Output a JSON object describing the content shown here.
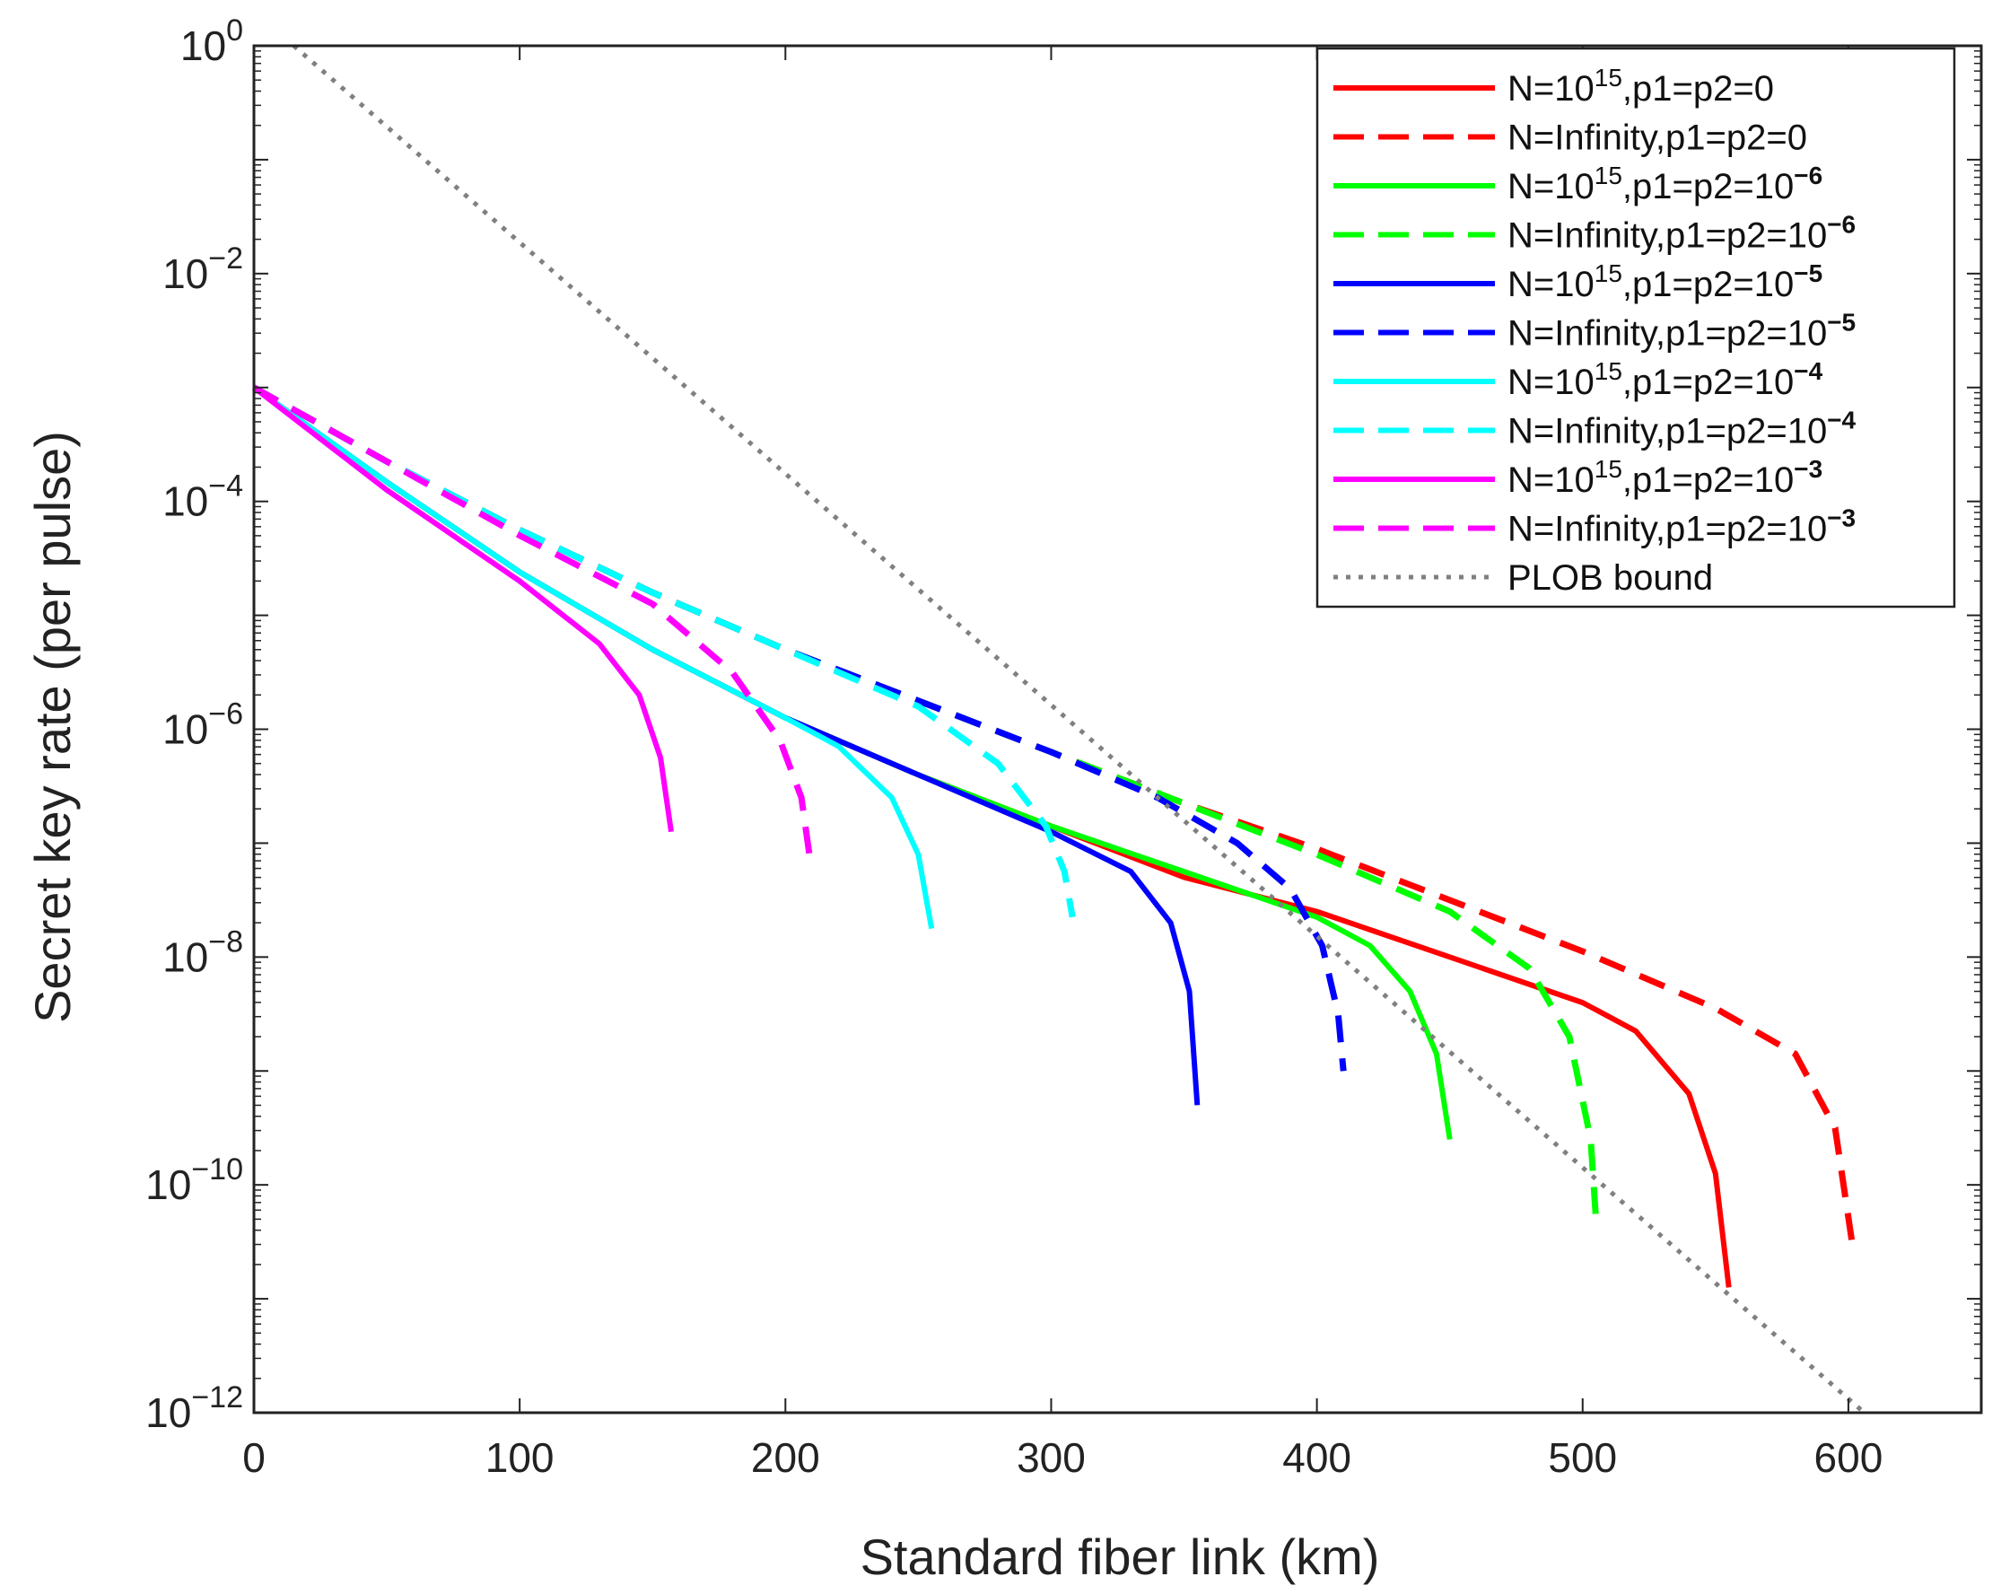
{
  "chart_data": {
    "type": "line",
    "title": "",
    "xlabel": "Standard fiber link (km)",
    "ylabel": "Secret key rate (per pulse)",
    "xlim": [
      0,
      650
    ],
    "ylim_log10": [
      -12,
      0
    ],
    "x_ticks": [
      0,
      100,
      200,
      300,
      400,
      500,
      600
    ],
    "x_tick_labels": [
      "0",
      "100",
      "200",
      "300",
      "400",
      "500",
      "600"
    ],
    "y_ticks_log10": [
      -12,
      -10,
      -8,
      -6,
      -4,
      -2,
      0
    ],
    "y_tick_labels": [
      {
        "base": "10",
        "exp": "−12"
      },
      {
        "base": "10",
        "exp": "−10"
      },
      {
        "base": "10",
        "exp": "−8"
      },
      {
        "base": "10",
        "exp": "−6"
      },
      {
        "base": "10",
        "exp": "−4"
      },
      {
        "base": "10",
        "exp": "−2"
      },
      {
        "base": "10",
        "exp": "0"
      }
    ],
    "grid": false,
    "legend_position": "top-right",
    "series": [
      {
        "name": "N=10^15,p1=p2=0",
        "label": {
          "pre": "N=10",
          "sup": "15",
          "post": ",p1=p2=0",
          "sup2": ""
        },
        "color": "#ff0000",
        "style": "solid",
        "points": [
          [
            0,
            -3.0
          ],
          [
            50,
            -3.83
          ],
          [
            100,
            -4.62
          ],
          [
            150,
            -5.3
          ],
          [
            200,
            -5.9
          ],
          [
            250,
            -6.4
          ],
          [
            300,
            -6.85
          ],
          [
            350,
            -7.3
          ],
          [
            400,
            -7.6
          ],
          [
            450,
            -8.0
          ],
          [
            500,
            -8.4
          ],
          [
            520,
            -8.65
          ],
          [
            540,
            -9.2
          ],
          [
            550,
            -9.9
          ],
          [
            555,
            -10.9
          ]
        ]
      },
      {
        "name": "N=Infinity,p1=p2=0",
        "label": {
          "pre": "N=Infinity,p1=p2=0",
          "sup": "",
          "post": "",
          "sup2": ""
        },
        "color": "#ff0000",
        "style": "dashed",
        "points": [
          [
            0,
            -3.0
          ],
          [
            50,
            -3.65
          ],
          [
            100,
            -4.25
          ],
          [
            150,
            -4.8
          ],
          [
            200,
            -5.3
          ],
          [
            250,
            -5.75
          ],
          [
            300,
            -6.2
          ],
          [
            350,
            -6.65
          ],
          [
            400,
            -7.05
          ],
          [
            450,
            -7.5
          ],
          [
            500,
            -7.95
          ],
          [
            550,
            -8.45
          ],
          [
            580,
            -8.85
          ],
          [
            595,
            -9.5
          ],
          [
            602,
            -10.6
          ]
        ]
      },
      {
        "name": "N=10^15,p1=p2=10^-6",
        "label": {
          "pre": "N=10",
          "sup": "15",
          "post": ",p1=p2=10",
          "sup2": "−6"
        },
        "color": "#00ff00",
        "style": "solid",
        "points": [
          [
            0,
            -3.0
          ],
          [
            50,
            -3.83
          ],
          [
            100,
            -4.62
          ],
          [
            150,
            -5.3
          ],
          [
            200,
            -5.9
          ],
          [
            250,
            -6.4
          ],
          [
            300,
            -6.85
          ],
          [
            350,
            -7.25
          ],
          [
            400,
            -7.65
          ],
          [
            420,
            -7.9
          ],
          [
            435,
            -8.3
          ],
          [
            445,
            -8.85
          ],
          [
            450,
            -9.6
          ]
        ]
      },
      {
        "name": "N=Infinity,p1=p2=10^-6",
        "label": {
          "pre": "N=Infinity,p1=p2=10",
          "sup": "",
          "post": "",
          "sup2": "−6"
        },
        "color": "#00ff00",
        "style": "dashed",
        "points": [
          [
            0,
            -3.0
          ],
          [
            50,
            -3.65
          ],
          [
            100,
            -4.25
          ],
          [
            150,
            -4.8
          ],
          [
            200,
            -5.3
          ],
          [
            250,
            -5.75
          ],
          [
            300,
            -6.2
          ],
          [
            350,
            -6.65
          ],
          [
            400,
            -7.1
          ],
          [
            450,
            -7.6
          ],
          [
            480,
            -8.1
          ],
          [
            495,
            -8.7
          ],
          [
            503,
            -9.6
          ],
          [
            505,
            -10.3
          ]
        ]
      },
      {
        "name": "N=10^15,p1=p2=10^-5",
        "label": {
          "pre": "N=10",
          "sup": "15",
          "post": ",p1=p2=10",
          "sup2": "−5"
        },
        "color": "#0000ff",
        "style": "solid",
        "points": [
          [
            0,
            -3.0
          ],
          [
            50,
            -3.83
          ],
          [
            100,
            -4.62
          ],
          [
            150,
            -5.3
          ],
          [
            200,
            -5.9
          ],
          [
            250,
            -6.4
          ],
          [
            300,
            -6.9
          ],
          [
            330,
            -7.25
          ],
          [
            345,
            -7.7
          ],
          [
            352,
            -8.3
          ],
          [
            355,
            -9.3
          ]
        ]
      },
      {
        "name": "N=Infinity,p1=p2=10^-5",
        "label": {
          "pre": "N=Infinity,p1=p2=10",
          "sup": "",
          "post": "",
          "sup2": "−5"
        },
        "color": "#0000ff",
        "style": "dashed",
        "points": [
          [
            0,
            -3.0
          ],
          [
            50,
            -3.65
          ],
          [
            100,
            -4.25
          ],
          [
            150,
            -4.8
          ],
          [
            200,
            -5.3
          ],
          [
            250,
            -5.75
          ],
          [
            300,
            -6.2
          ],
          [
            340,
            -6.6
          ],
          [
            370,
            -7.0
          ],
          [
            390,
            -7.4
          ],
          [
            402,
            -7.9
          ],
          [
            408,
            -8.5
          ],
          [
            410,
            -9.0
          ]
        ]
      },
      {
        "name": "N=10^15,p1=p2=10^-4",
        "label": {
          "pre": "N=10",
          "sup": "15",
          "post": ",p1=p2=10",
          "sup2": "−4"
        },
        "color": "#00ffff",
        "style": "solid",
        "points": [
          [
            0,
            -3.0
          ],
          [
            50,
            -3.83
          ],
          [
            100,
            -4.62
          ],
          [
            150,
            -5.3
          ],
          [
            200,
            -5.9
          ],
          [
            220,
            -6.15
          ],
          [
            240,
            -6.6
          ],
          [
            250,
            -7.1
          ],
          [
            255,
            -7.75
          ]
        ]
      },
      {
        "name": "N=Infinity,p1=p2=10^-4",
        "label": {
          "pre": "N=Infinity,p1=p2=10",
          "sup": "",
          "post": "",
          "sup2": "−4"
        },
        "color": "#00ffff",
        "style": "dashed",
        "points": [
          [
            0,
            -3.0
          ],
          [
            50,
            -3.65
          ],
          [
            100,
            -4.25
          ],
          [
            150,
            -4.8
          ],
          [
            200,
            -5.3
          ],
          [
            250,
            -5.8
          ],
          [
            280,
            -6.3
          ],
          [
            298,
            -6.85
          ],
          [
            305,
            -7.25
          ],
          [
            308,
            -7.65
          ]
        ]
      },
      {
        "name": "N=10^15,p1=p2=10^-3",
        "label": {
          "pre": "N=10",
          "sup": "15",
          "post": ",p1=p2=10",
          "sup2": "−3"
        },
        "color": "#ff00ff",
        "style": "solid",
        "points": [
          [
            0,
            -3.0
          ],
          [
            50,
            -3.9
          ],
          [
            100,
            -4.7
          ],
          [
            130,
            -5.25
          ],
          [
            145,
            -5.7
          ],
          [
            153,
            -6.25
          ],
          [
            157,
            -6.9
          ]
        ]
      },
      {
        "name": "N=Infinity,p1=p2=10^-3",
        "label": {
          "pre": "N=Infinity,p1=p2=10",
          "sup": "",
          "post": "",
          "sup2": "−3"
        },
        "color": "#ff00ff",
        "style": "dashed",
        "points": [
          [
            0,
            -3.0
          ],
          [
            50,
            -3.65
          ],
          [
            100,
            -4.3
          ],
          [
            150,
            -4.9
          ],
          [
            180,
            -5.5
          ],
          [
            198,
            -6.1
          ],
          [
            206,
            -6.6
          ],
          [
            209,
            -7.1
          ]
        ]
      },
      {
        "name": "PLOB bound",
        "label": {
          "pre": "PLOB bound",
          "sup": "",
          "post": "",
          "sup2": ""
        },
        "color": "#808080",
        "style": "dotted",
        "points": [
          [
            15,
            0
          ],
          [
            606,
            -12
          ]
        ]
      }
    ]
  }
}
